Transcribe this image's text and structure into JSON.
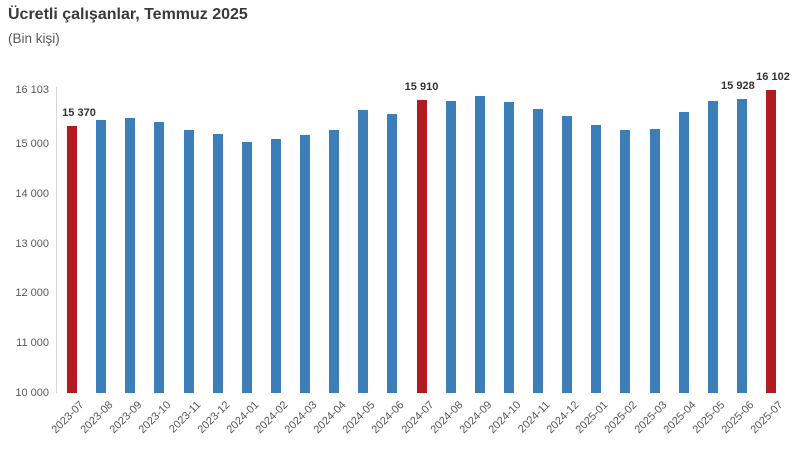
{
  "header": {
    "title": "Ücretli çalışanlar, Temmuz 2025",
    "subtitle": "(Bin kişi)"
  },
  "chart_data": {
    "type": "bar",
    "title": "Ücretli çalışanlar, Temmuz 2025",
    "xlabel": "",
    "ylabel": "(Bin kişi)",
    "ylim": [
      10000,
      16103
    ],
    "grid": false,
    "legend": "none",
    "categories": [
      "2023-07",
      "2023-08",
      "2023-09",
      "2023-10",
      "2023-11",
      "2023-12",
      "2024-01",
      "2024-02",
      "2024-03",
      "2024-04",
      "2024-05",
      "2024-06",
      "2024-07",
      "2024-08",
      "2024-09",
      "2024-10",
      "2024-11",
      "2024-12",
      "2025-01",
      "2025-02",
      "2025-03",
      "2025-04",
      "2025-05",
      "2025-06",
      "2025-07"
    ],
    "values": [
      15370,
      15500,
      15545,
      15450,
      15290,
      15215,
      15050,
      15115,
      15195,
      15295,
      15705,
      15610,
      15910,
      15885,
      15990,
      15855,
      15730,
      15570,
      15390,
      15290,
      15310,
      15650,
      15885,
      15928,
      16102
    ],
    "y_tick_labels": [
      "16 103",
      "15 000",
      "14 000",
      "13 000",
      "12 000",
      "11 000",
      "10 000"
    ],
    "y_tick_values": [
      16103,
      15000,
      14000,
      13000,
      12000,
      11000,
      10000
    ],
    "data_labels": [
      {
        "index": 0,
        "text": "15 370"
      },
      {
        "index": 12,
        "text": "15 910"
      },
      {
        "index": 23,
        "text": "15 928"
      },
      {
        "index": 24,
        "text": "16 102"
      }
    ],
    "bar_color": "#3c7eb8",
    "highlight_color": "#b11c22",
    "highlight_indices": [
      0,
      12,
      24
    ]
  }
}
